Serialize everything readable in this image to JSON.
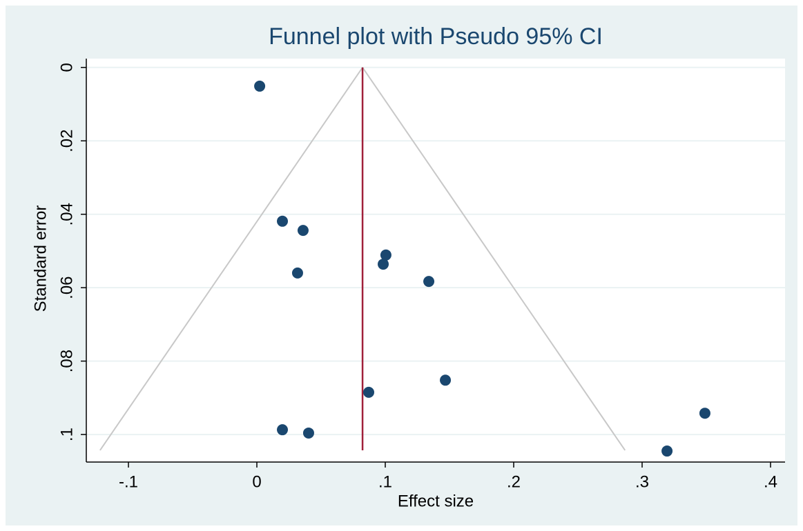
{
  "chart_data": {
    "type": "scatter",
    "title": "Funnel plot with Pseudo 95% CI",
    "x_label": "Effect size",
    "y_label": "Standard error",
    "x": [
      0.0022,
      0.0199,
      0.036,
      0.1005,
      0.0984,
      0.0317,
      0.1339,
      0.1468,
      0.0871,
      0.3489,
      0.0199,
      0.0403,
      0.3194
    ],
    "values": [
      0.0051,
      0.0419,
      0.0444,
      0.0511,
      0.0536,
      0.056,
      0.0583,
      0.0852,
      0.0885,
      0.0942,
      0.0987,
      0.0996,
      0.1045
    ],
    "color": "#1a476f",
    "xlim": [
      -0.1328,
      0.4113
    ],
    "xticks": [
      {
        "value": -0.1,
        "label": "-.1"
      },
      0,
      {
        "value": 0.1,
        "label": ".1"
      },
      {
        "value": 0.2,
        "label": ".2"
      },
      {
        "value": 0.3,
        "label": ".3"
      },
      {
        "value": 0.4,
        "label": ".4"
      }
    ],
    "ylim": [
      -0.0024,
      0.1075
    ],
    "y_reversed": true,
    "yticks": [
      0,
      {
        "value": 0.02,
        "label": ".02"
      },
      {
        "value": 0.04,
        "label": ".04"
      },
      {
        "value": 0.06,
        "label": ".06"
      },
      {
        "value": 0.08,
        "label": ".08"
      },
      {
        "value": 0.1,
        "label": ".1"
      }
    ],
    "grid": true,
    "funnel": {
      "center": 0.0823,
      "se_max": 0.1043,
      "lower_at_max": -0.1221,
      "upper_at_max": 0.2867,
      "center_color": "#a0203a",
      "ci_color": "#c8c8c8"
    }
  }
}
